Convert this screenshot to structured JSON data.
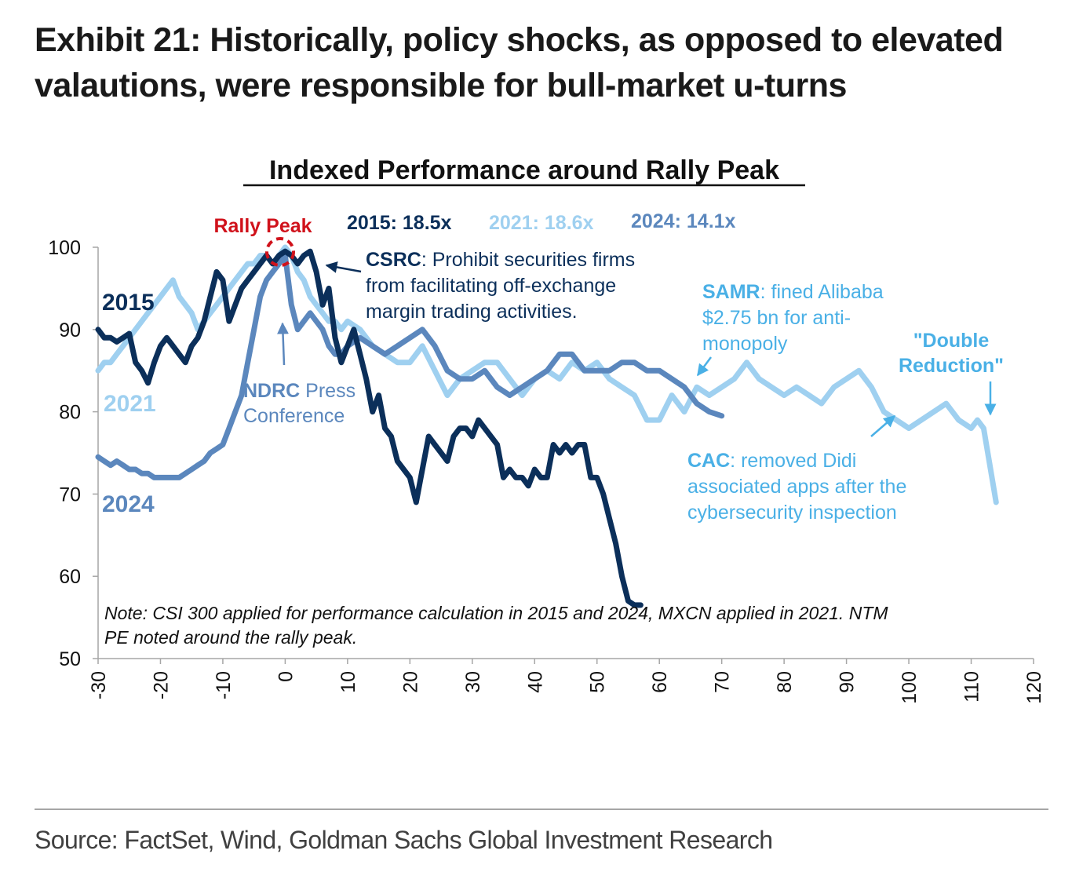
{
  "exhibit": {
    "title_line1": "Exhibit 21: Historically, policy shocks, as opposed to elevated",
    "title_line2": "valautions, were responsible for bull-market u-turns"
  },
  "source": "Source: FactSet, Wind, Goldman Sachs Global Investment Research",
  "colors": {
    "s2015": "#0b2f5a",
    "s2021": "#9fd0f0",
    "s2024": "#5b87bd",
    "peak": "#d0121b",
    "ann2021": "#4ab0e6"
  },
  "chart_data": {
    "type": "line",
    "title": "Indexed Performance around Rally Peak",
    "xlabel": "",
    "ylabel": "",
    "xlim": [
      -30,
      120
    ],
    "ylim": [
      50,
      100
    ],
    "x_ticks": [
      "-30",
      "-20",
      "-10",
      "0",
      "10",
      "20",
      "30",
      "40",
      "50",
      "60",
      "70",
      "80",
      "90",
      "100",
      "110",
      "120"
    ],
    "y_ticks": [
      "50",
      "60",
      "70",
      "80",
      "90",
      "100"
    ],
    "legend": {
      "rally_peak": "Rally Peak",
      "pe_2015": "2015: 18.5x",
      "pe_2021": "2021: 18.6x",
      "pe_2024": "2024: 14.1x"
    },
    "series": [
      {
        "name": "2021",
        "label": "2021",
        "x": [
          -30,
          -29,
          -28,
          -27,
          -26,
          -25,
          -24,
          -23,
          -22,
          -21,
          -20,
          -19,
          -18,
          -17,
          -16,
          -15,
          -14,
          -13,
          -12,
          -11,
          -10,
          -9,
          -8,
          -7,
          -6,
          -5,
          -4,
          -3,
          -2,
          -1,
          0,
          1,
          2,
          3,
          4,
          5,
          6,
          7,
          8,
          9,
          10,
          12,
          14,
          16,
          18,
          20,
          22,
          24,
          26,
          28,
          30,
          32,
          34,
          36,
          38,
          40,
          42,
          44,
          46,
          48,
          50,
          52,
          54,
          56,
          58,
          60,
          62,
          64,
          66,
          68,
          70,
          72,
          74,
          76,
          78,
          80,
          82,
          84,
          86,
          88,
          90,
          92,
          94,
          96,
          98,
          100,
          102,
          104,
          106,
          108,
          110,
          111,
          112,
          114
        ],
        "y": [
          85,
          86,
          86,
          87,
          88,
          89,
          90,
          91,
          92,
          93,
          94,
          95,
          96,
          94,
          93,
          92,
          90,
          91,
          92,
          93,
          94,
          95,
          96,
          97,
          98,
          98,
          99,
          99,
          98,
          99,
          100,
          99,
          97,
          96,
          94,
          93,
          92,
          91,
          91,
          90,
          91,
          90,
          88,
          87,
          86,
          86,
          88,
          85,
          82,
          84,
          85,
          86,
          86,
          84,
          82,
          84,
          85,
          84,
          86,
          85,
          86,
          84,
          83,
          82,
          79,
          79,
          82,
          80,
          83,
          82,
          83,
          84,
          86,
          84,
          83,
          82,
          83,
          82,
          81,
          83,
          84,
          85,
          83,
          80,
          79,
          78,
          79,
          80,
          81,
          79,
          78,
          79,
          78,
          69
        ]
      },
      {
        "name": "2024",
        "label": "2024",
        "x": [
          -30,
          -29,
          -28,
          -27,
          -26,
          -25,
          -24,
          -23,
          -22,
          -21,
          -20,
          -19,
          -18,
          -17,
          -16,
          -15,
          -14,
          -13,
          -12,
          -11,
          -10,
          -9,
          -8,
          -7,
          -6,
          -5,
          -4,
          -3,
          -2,
          -1,
          0,
          1,
          2,
          3,
          4,
          5,
          6,
          7,
          8,
          9,
          10,
          12,
          14,
          16,
          18,
          20,
          22,
          24,
          26,
          28,
          30,
          32,
          34,
          36,
          38,
          40,
          42,
          44,
          46,
          48,
          50,
          52,
          54,
          56,
          58,
          60,
          62,
          64,
          66,
          68,
          70
        ],
        "y": [
          74.5,
          74,
          73.5,
          74,
          73.5,
          73,
          73,
          72.5,
          72.5,
          72,
          72,
          72,
          72,
          72,
          72.5,
          73,
          73.5,
          74,
          75,
          75.5,
          76,
          78,
          80,
          82,
          86,
          90,
          94,
          96,
          97,
          98,
          99,
          93,
          90,
          91,
          92,
          91,
          90,
          88,
          87,
          87,
          88,
          89,
          88,
          87,
          88,
          89,
          90,
          88,
          85,
          84,
          84,
          85,
          83,
          82,
          83,
          84,
          85,
          87,
          87,
          85,
          85,
          85,
          86,
          86,
          85,
          85,
          84,
          83,
          81,
          80,
          79.5
        ]
      },
      {
        "name": "2015",
        "label": "2015",
        "x": [
          -30,
          -29,
          -28,
          -27,
          -26,
          -25,
          -24,
          -23,
          -22,
          -21,
          -20,
          -19,
          -18,
          -17,
          -16,
          -15,
          -14,
          -13,
          -12,
          -11,
          -10,
          -9,
          -8,
          -7,
          -6,
          -5,
          -4,
          -3,
          -2,
          -1,
          0,
          1,
          2,
          3,
          4,
          5,
          6,
          7,
          8,
          9,
          10,
          11,
          12,
          13,
          14,
          15,
          16,
          17,
          18,
          19,
          20,
          21,
          22,
          23,
          24,
          25,
          26,
          27,
          28,
          29,
          30,
          31,
          32,
          33,
          34,
          35,
          36,
          37,
          38,
          39,
          40,
          41,
          42,
          43,
          44,
          45,
          46,
          47,
          48,
          49,
          50,
          51,
          52,
          53,
          54,
          55,
          56,
          57
        ],
        "y": [
          90,
          89,
          89,
          88.5,
          89,
          89.5,
          86,
          85,
          83.5,
          86,
          88,
          89,
          88,
          87,
          86,
          88,
          89,
          91,
          94,
          97,
          96,
          91,
          93,
          95,
          96,
          97,
          98,
          99,
          98,
          99,
          99.5,
          99,
          98,
          99,
          99.5,
          97,
          93,
          95,
          89,
          86,
          88,
          90,
          87,
          84,
          80,
          82,
          78,
          77,
          74,
          73,
          72,
          69,
          73,
          77,
          76,
          75,
          74,
          77,
          78,
          78,
          77,
          79,
          78,
          77,
          76,
          72,
          73,
          72,
          72,
          71,
          73,
          72,
          72,
          76,
          75,
          76,
          75,
          76,
          76,
          72,
          72,
          70,
          67,
          64,
          60,
          57,
          56.5,
          56.5
        ]
      }
    ],
    "annotations": {
      "csrc_bold": "CSRC",
      "csrc_line1": ": Prohibit securities firms",
      "csrc_line2": "from facilitating off-exchange",
      "csrc_line3": "margin trading activities.",
      "ndrc_bold": "NDRC",
      "ndrc_line1": " Press",
      "ndrc_line2": "Conference",
      "samr_bold": "SAMR",
      "samr_line1": ": fined Alibaba",
      "samr_line2": "$2.75 bn for anti-",
      "samr_line3": "monopoly",
      "double_line1": "\"Double",
      "double_line2": "Reduction\"",
      "cac_bold": "CAC",
      "cac_line1": ": removed Didi",
      "cac_line2": "associated apps after the",
      "cac_line3": "cybersecurity inspection"
    },
    "note_line1": "Note: CSI 300 applied for performance calculation in 2015 and 2024, MXCN applied in 2021. NTM",
    "note_line2": "PE noted around the rally peak."
  }
}
